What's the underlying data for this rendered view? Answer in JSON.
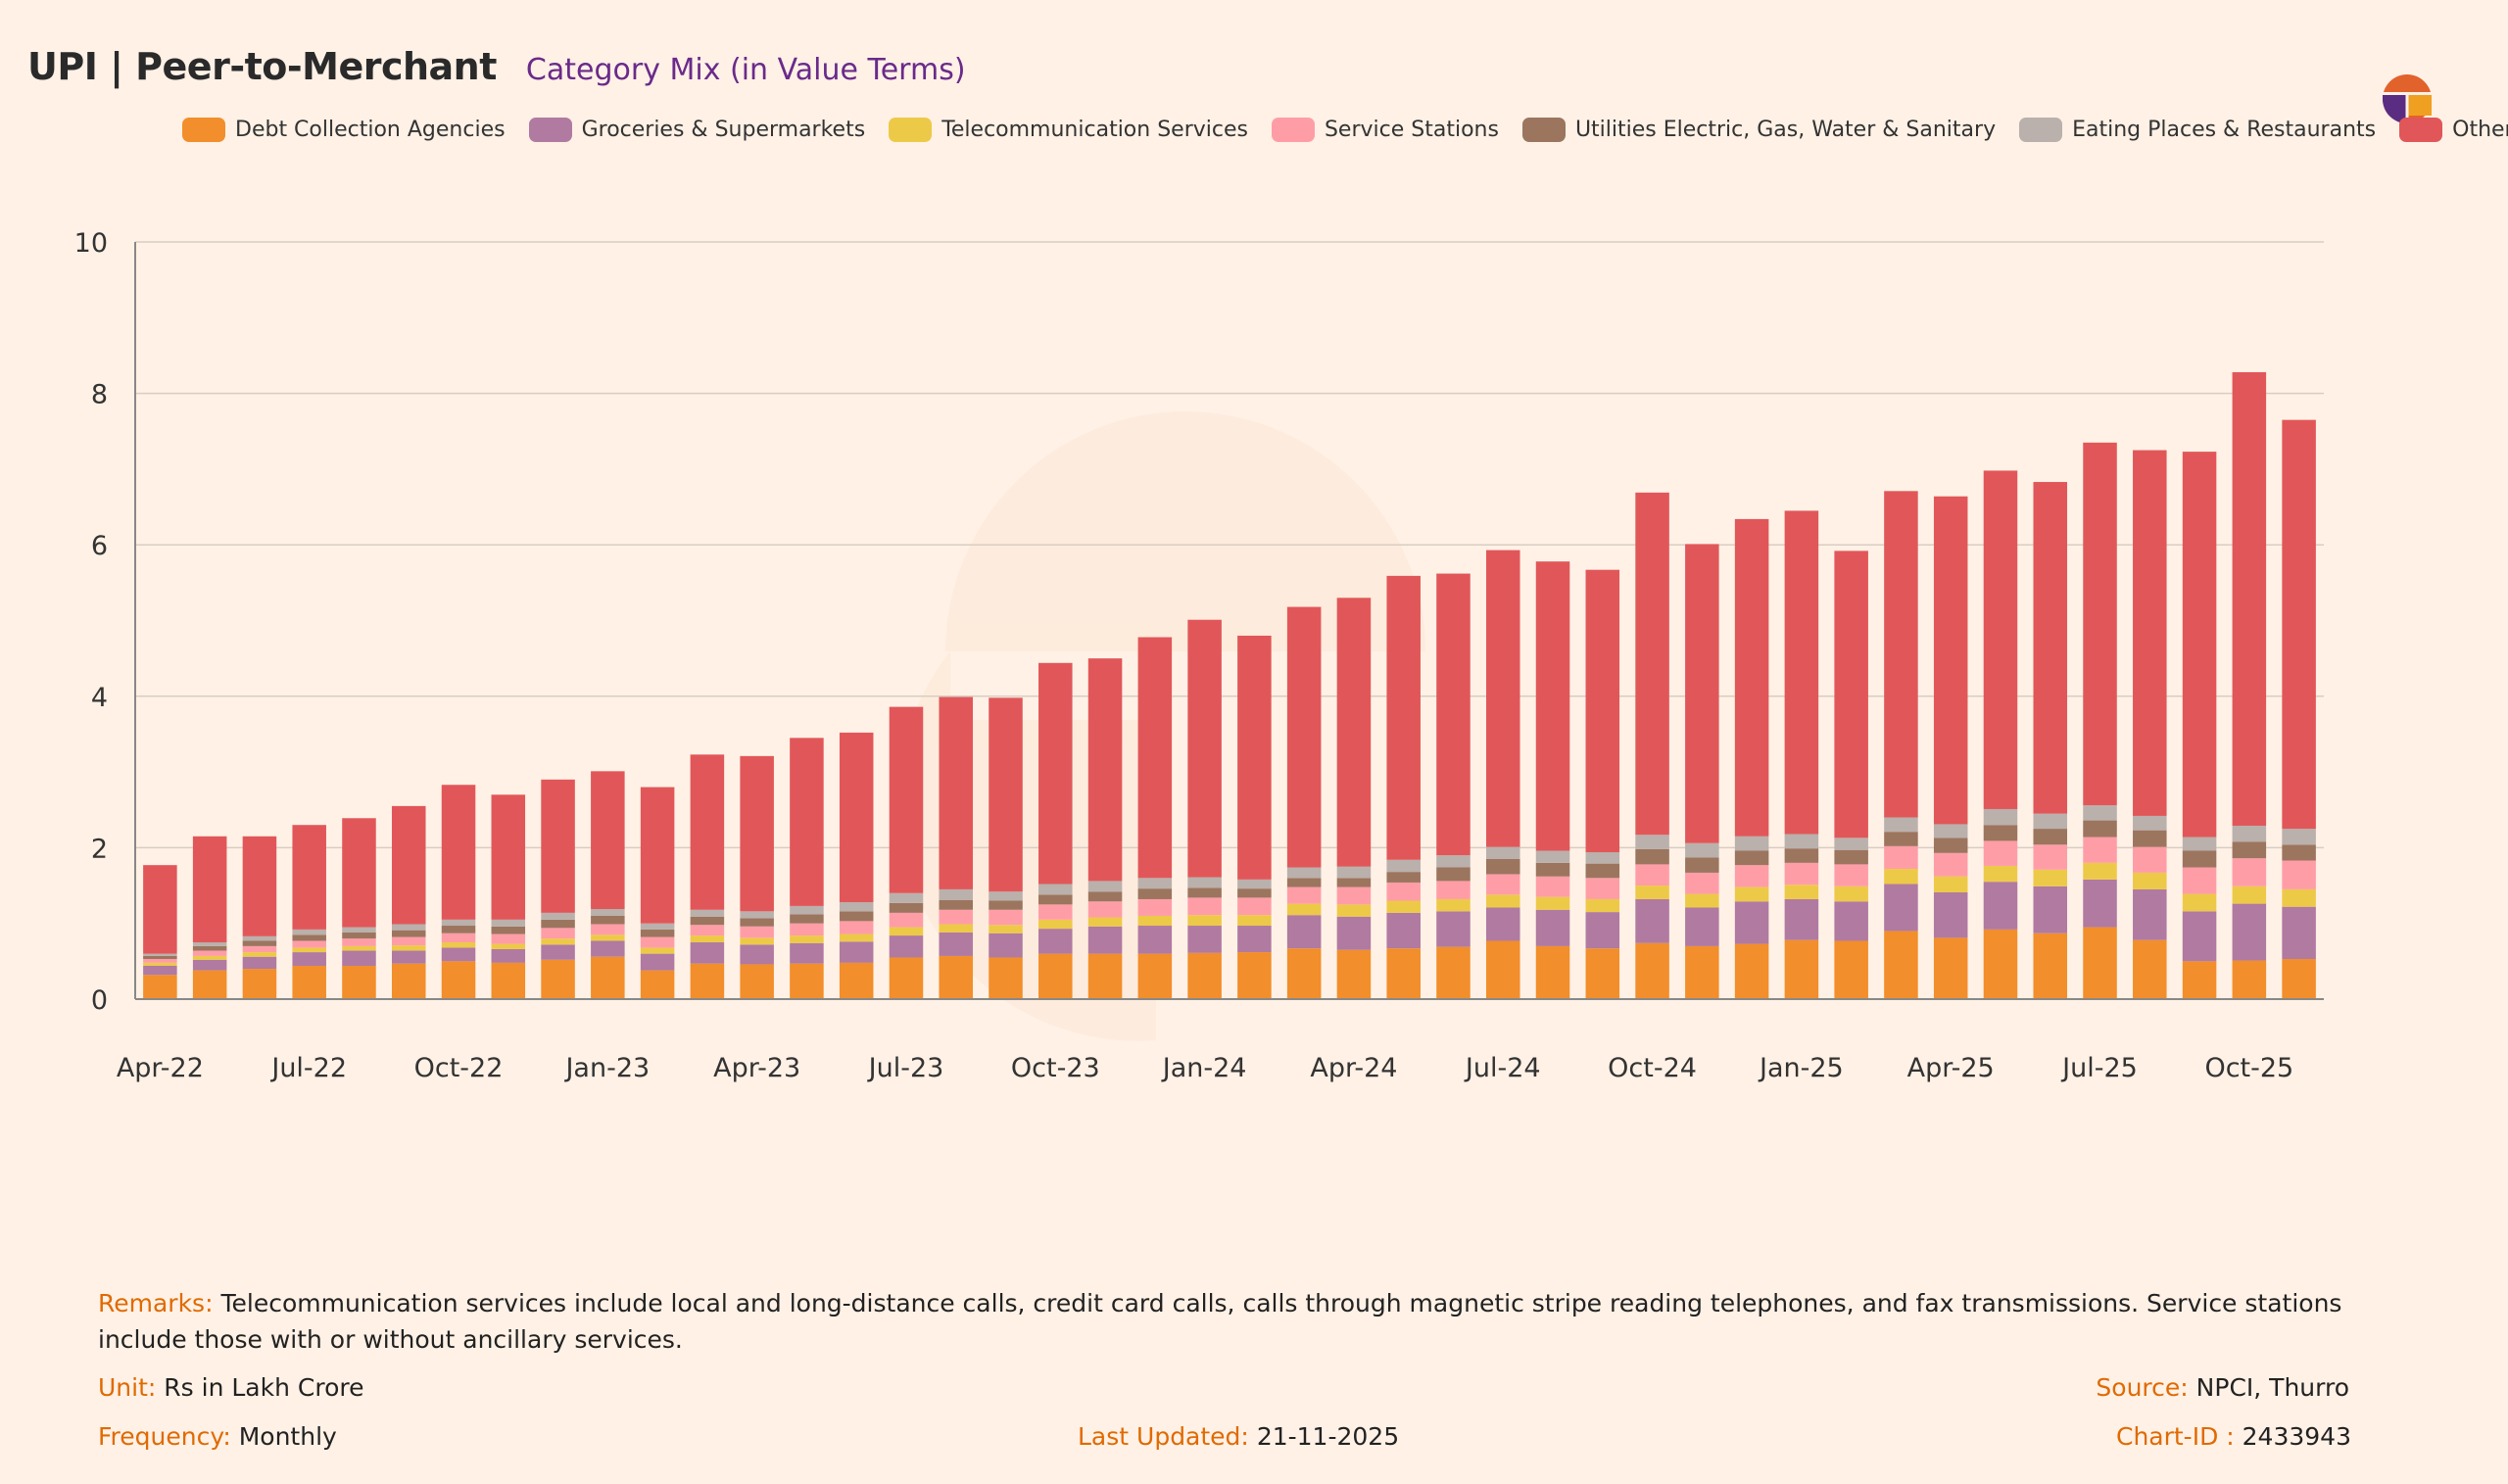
{
  "header": {
    "title": "UPI | Peer-to-Merchant",
    "subtitle": "Category Mix (in Value Terms)"
  },
  "logo": {
    "icon": "thurro-logo-icon",
    "colors": [
      "#e2622b",
      "#f0a020",
      "#5a2d82"
    ]
  },
  "legend": [
    {
      "label": "Debt Collection Agencies",
      "color": "#f28e2b"
    },
    {
      "label": "Groceries & Supermarkets",
      "color": "#b07aa1"
    },
    {
      "label": "Telecommunication Services",
      "color": "#edc948"
    },
    {
      "label": "Service Stations",
      "color": "#ff9da7"
    },
    {
      "label": "Utilities Electric, Gas, Water & Sanitary",
      "color": "#9c755f"
    },
    {
      "label": "Eating Places & Restaurants",
      "color": "#bab0ac"
    },
    {
      "label": "Others",
      "color": "#e15759"
    }
  ],
  "chart_data": {
    "type": "bar",
    "stacked": true,
    "ylim": [
      0,
      10
    ],
    "yticks": [
      0,
      2,
      4,
      6,
      8,
      10
    ],
    "grid": true,
    "legend_position": "top",
    "xtick_labels": [
      "Apr-22",
      "Jul-22",
      "Oct-22",
      "Jan-23",
      "Apr-23",
      "Jul-23",
      "Oct-23",
      "Jan-24",
      "Apr-24",
      "Jul-24",
      "Oct-24",
      "Jan-25",
      "Apr-25",
      "Jul-25",
      "Oct-25"
    ],
    "categories": [
      "Apr-22",
      "May-22",
      "Jun-22",
      "Jul-22",
      "Aug-22",
      "Sep-22",
      "Oct-22",
      "Nov-22",
      "Dec-22",
      "Jan-23",
      "Feb-23",
      "Mar-23",
      "Apr-23",
      "May-23",
      "Jun-23",
      "Jul-23",
      "Aug-23",
      "Sep-23",
      "Oct-23",
      "Nov-23",
      "Dec-23",
      "Jan-24",
      "Feb-24",
      "Mar-24",
      "Apr-24",
      "May-24",
      "Jun-24",
      "Jul-24",
      "Aug-24",
      "Sep-24",
      "Oct-24",
      "Nov-24",
      "Dec-24",
      "Jan-25",
      "Feb-25",
      "Mar-25",
      "Apr-25",
      "May-25",
      "Jun-25",
      "Jul-25",
      "Aug-25",
      "Sep-25",
      "Oct-25",
      "Nov-25"
    ],
    "series": [
      {
        "name": "Debt Collection Agencies",
        "color": "#f28e2b",
        "values": [
          0.32,
          0.38,
          0.4,
          0.44,
          0.44,
          0.47,
          0.5,
          0.48,
          0.52,
          0.56,
          0.38,
          0.47,
          0.46,
          0.47,
          0.48,
          0.55,
          0.57,
          0.55,
          0.6,
          0.6,
          0.6,
          0.61,
          0.62,
          0.67,
          0.65,
          0.67,
          0.69,
          0.77,
          0.7,
          0.67,
          0.74,
          0.7,
          0.73,
          0.78,
          0.77,
          0.9,
          0.81,
          0.92,
          0.87,
          0.95,
          0.78,
          0.5,
          0.51,
          0.53
        ]
      },
      {
        "name": "Groceries & Supermarkets",
        "color": "#b07aa1",
        "values": [
          0.12,
          0.14,
          0.16,
          0.18,
          0.2,
          0.17,
          0.18,
          0.18,
          0.2,
          0.21,
          0.22,
          0.28,
          0.26,
          0.27,
          0.28,
          0.29,
          0.31,
          0.32,
          0.33,
          0.36,
          0.37,
          0.36,
          0.35,
          0.44,
          0.44,
          0.47,
          0.47,
          0.44,
          0.48,
          0.48,
          0.58,
          0.51,
          0.56,
          0.54,
          0.52,
          0.62,
          0.6,
          0.63,
          0.62,
          0.63,
          0.67,
          0.66,
          0.75,
          0.69
        ]
      },
      {
        "name": "Telecommunication Services",
        "color": "#edc948",
        "values": [
          0.04,
          0.05,
          0.06,
          0.06,
          0.06,
          0.07,
          0.07,
          0.07,
          0.08,
          0.08,
          0.08,
          0.09,
          0.09,
          0.1,
          0.1,
          0.11,
          0.11,
          0.11,
          0.12,
          0.12,
          0.13,
          0.14,
          0.14,
          0.15,
          0.16,
          0.16,
          0.16,
          0.17,
          0.17,
          0.17,
          0.18,
          0.18,
          0.19,
          0.19,
          0.2,
          0.2,
          0.21,
          0.21,
          0.22,
          0.22,
          0.22,
          0.23,
          0.23,
          0.23
        ]
      },
      {
        "name": "Service Stations",
        "color": "#ff9da7",
        "values": [
          0.05,
          0.07,
          0.08,
          0.09,
          0.1,
          0.11,
          0.12,
          0.13,
          0.14,
          0.14,
          0.14,
          0.14,
          0.15,
          0.16,
          0.17,
          0.19,
          0.19,
          0.2,
          0.2,
          0.21,
          0.22,
          0.23,
          0.23,
          0.22,
          0.23,
          0.24,
          0.24,
          0.27,
          0.27,
          0.28,
          0.28,
          0.28,
          0.29,
          0.29,
          0.29,
          0.3,
          0.31,
          0.33,
          0.33,
          0.34,
          0.34,
          0.35,
          0.37,
          0.38
        ]
      },
      {
        "name": "Utilities Electric, Gas, Water & Sanitary",
        "color": "#9c755f",
        "values": [
          0.04,
          0.06,
          0.07,
          0.08,
          0.08,
          0.09,
          0.1,
          0.1,
          0.11,
          0.11,
          0.1,
          0.11,
          0.11,
          0.12,
          0.13,
          0.13,
          0.13,
          0.12,
          0.13,
          0.13,
          0.14,
          0.13,
          0.12,
          0.12,
          0.12,
          0.14,
          0.18,
          0.2,
          0.18,
          0.19,
          0.2,
          0.2,
          0.19,
          0.19,
          0.19,
          0.19,
          0.2,
          0.21,
          0.21,
          0.22,
          0.22,
          0.22,
          0.22,
          0.21
        ]
      },
      {
        "name": "Eating Places & Restaurants",
        "color": "#bab0ac",
        "values": [
          0.03,
          0.05,
          0.06,
          0.07,
          0.07,
          0.08,
          0.08,
          0.09,
          0.09,
          0.09,
          0.08,
          0.09,
          0.09,
          0.11,
          0.12,
          0.13,
          0.14,
          0.12,
          0.14,
          0.14,
          0.14,
          0.14,
          0.12,
          0.14,
          0.15,
          0.16,
          0.16,
          0.16,
          0.16,
          0.15,
          0.19,
          0.19,
          0.19,
          0.19,
          0.16,
          0.19,
          0.18,
          0.21,
          0.2,
          0.2,
          0.19,
          0.18,
          0.21,
          0.21
        ]
      },
      {
        "name": "Others",
        "color": "#e15759",
        "values": [
          1.17,
          1.4,
          1.32,
          1.38,
          1.44,
          1.56,
          1.78,
          1.65,
          1.76,
          1.82,
          1.8,
          2.05,
          2.05,
          2.22,
          2.24,
          2.46,
          2.54,
          2.56,
          2.92,
          2.94,
          3.18,
          3.4,
          3.22,
          3.44,
          3.55,
          3.75,
          3.72,
          3.92,
          3.82,
          3.73,
          4.52,
          3.95,
          4.19,
          4.27,
          3.79,
          4.31,
          4.33,
          4.47,
          4.38,
          4.79,
          4.83,
          5.09,
          5.99,
          5.4
        ]
      }
    ]
  },
  "footer": {
    "remarks_label": "Remarks:",
    "remarks_text": "Telecommunication services include local and long-distance calls, credit card calls, calls through magnetic stripe reading telephones, and fax transmissions. Service stations include those with or without ancillary services.",
    "unit_label": "Unit:",
    "unit_value": "Rs in Lakh Crore",
    "source_label": "Source:",
    "source_value": "NPCI, Thurro",
    "frequency_label": "Frequency:",
    "frequency_value": "Monthly",
    "updated_label": "Last Updated:",
    "updated_value": "21-11-2025",
    "chartid_label": "Chart-ID :",
    "chartid_value": "2433943"
  }
}
